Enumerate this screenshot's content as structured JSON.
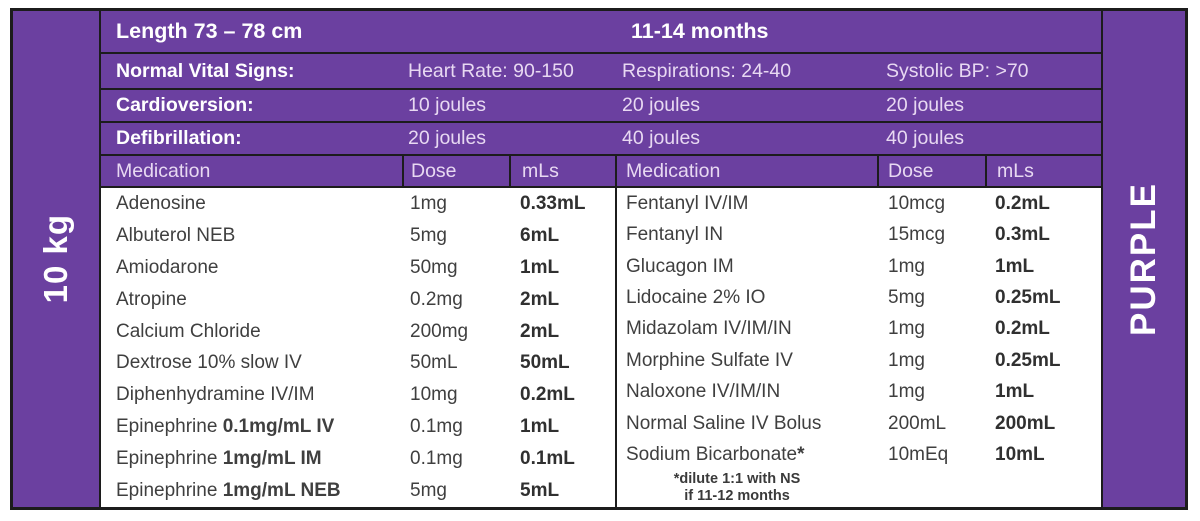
{
  "card": {
    "weight_label": "10 kg",
    "color_label": "PURPLE",
    "header": {
      "length": "Length 73 – 78 cm",
      "age": "11-14 months"
    },
    "vitals": {
      "label": "Normal Vital Signs:",
      "heart_rate": "Heart Rate: 90-150",
      "respirations": "Respirations: 24-40",
      "systolic_bp": "Systolic BP: >70"
    },
    "cardioversion": {
      "label": "Cardioversion:",
      "v1": "10 joules",
      "v2": "20 joules",
      "v3": "20 joules"
    },
    "defibrillation": {
      "label": "Defibrillation:",
      "v1": "20 joules",
      "v2": "40 joules",
      "v3": "40 joules"
    },
    "med_header": {
      "medication": "Medication",
      "dose": "Dose",
      "mls": "mLs"
    },
    "left_meds": [
      {
        "name": "Adenosine",
        "name_bold": "",
        "dose": "1mg",
        "ml": "0.33mL"
      },
      {
        "name": "Albuterol NEB",
        "name_bold": "",
        "dose": "5mg",
        "ml": "6mL"
      },
      {
        "name": "Amiodarone",
        "name_bold": "",
        "dose": "50mg",
        "ml": "1mL"
      },
      {
        "name": "Atropine",
        "name_bold": "",
        "dose": "0.2mg",
        "ml": "2mL"
      },
      {
        "name": "Calcium Chloride",
        "name_bold": "",
        "dose": "200mg",
        "ml": "2mL"
      },
      {
        "name": "Dextrose 10% slow IV",
        "name_bold": "",
        "dose": "50mL",
        "ml": "50mL"
      },
      {
        "name": "Diphenhydramine IV/IM",
        "name_bold": "",
        "dose": "10mg",
        "ml": "0.2mL"
      },
      {
        "name": "Epinephrine ",
        "name_bold": "0.1mg/mL IV",
        "dose": "0.1mg",
        "ml": "1mL"
      },
      {
        "name": "Epinephrine ",
        "name_bold": "1mg/mL IM",
        "dose": "0.1mg",
        "ml": "0.1mL"
      },
      {
        "name": "Epinephrine ",
        "name_bold": "1mg/mL NEB",
        "dose": "5mg",
        "ml": "5mL"
      }
    ],
    "right_meds": [
      {
        "name": "Fentanyl IV/IM",
        "name_bold": "",
        "dose": "10mcg",
        "ml": "0.2mL"
      },
      {
        "name": "Fentanyl IN",
        "name_bold": "",
        "dose": "15mcg",
        "ml": "0.3mL"
      },
      {
        "name": "Glucagon IM",
        "name_bold": "",
        "dose": "1mg",
        "ml": "1mL"
      },
      {
        "name": "Lidocaine 2% IO",
        "name_bold": "",
        "dose": "5mg",
        "ml": "0.25mL"
      },
      {
        "name": "Midazolam IV/IM/IN",
        "name_bold": "",
        "dose": "1mg",
        "ml": "0.2mL"
      },
      {
        "name": "Morphine Sulfate IV",
        "name_bold": "",
        "dose": "1mg",
        "ml": "0.25mL"
      },
      {
        "name": "Naloxone IV/IM/IN",
        "name_bold": "",
        "dose": "1mg",
        "ml": "1mL"
      },
      {
        "name": "Normal Saline IV Bolus",
        "name_bold": "",
        "dose": "200mL",
        "ml": "200mL"
      },
      {
        "name": "Sodium Bicarbonate",
        "name_bold": "*",
        "dose": "10mEq",
        "ml": "10mL"
      }
    ],
    "footnote": {
      "line1": "*dilute 1:1 with NS",
      "line2": "if 11-12 months"
    },
    "colors": {
      "purple": "#6b40a0",
      "light_text": "#e8d9f2",
      "line": "#1c1c1c",
      "body_text": "#3f3f3f"
    }
  }
}
